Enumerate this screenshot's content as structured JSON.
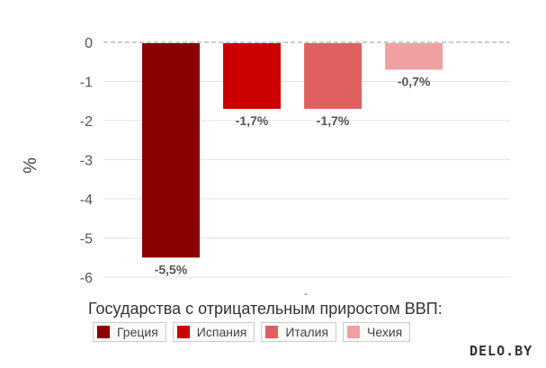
{
  "chart_data": {
    "type": "bar",
    "ylabel": "%",
    "xlabel": "-",
    "ylim": [
      -6,
      0
    ],
    "yticks": [
      "0",
      "-1",
      "-2",
      "-3",
      "-4",
      "-5",
      "-6"
    ],
    "grid": true,
    "categories": [
      "Греция",
      "Испания",
      "Италия",
      "Чехия"
    ],
    "values": [
      -5.5,
      -1.7,
      -1.7,
      -0.7
    ],
    "data_labels": [
      "-5,5%",
      "-1,7%",
      "-1,7%",
      "-0,7%"
    ],
    "colors": [
      "#8b0000",
      "#cc0000",
      "#e06060",
      "#f0a0a0"
    ],
    "legend": {
      "title": "Государства с отрицательным приростом ВВП:",
      "placement": "bottom"
    }
  },
  "watermark": "DELO.BY"
}
